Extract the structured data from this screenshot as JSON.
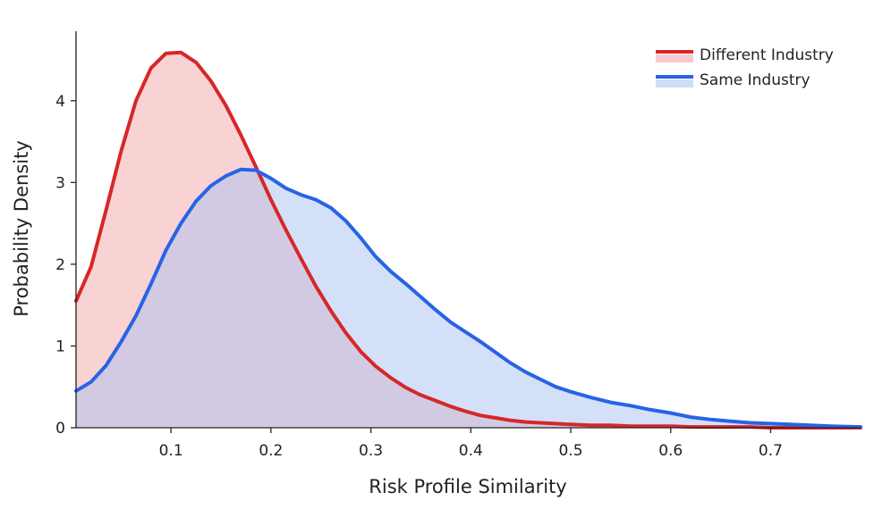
{
  "chart_data": {
    "type": "area",
    "title": "",
    "xlabel": "Risk Profile Similarity",
    "ylabel": "Probability Density",
    "xlim": [
      0.005,
      0.79
    ],
    "ylim": [
      0,
      4.85
    ],
    "xticks": [
      0.1,
      0.2,
      0.3,
      0.4,
      0.5,
      0.6,
      0.7
    ],
    "xtick_labels": [
      "0.1",
      "0.2",
      "0.3",
      "0.4",
      "0.5",
      "0.6",
      "0.7"
    ],
    "yticks": [
      0,
      1,
      2,
      3,
      4
    ],
    "ytick_labels": [
      "0",
      "1",
      "2",
      "3",
      "4"
    ],
    "grid": false,
    "legend_position": "top-right",
    "series": [
      {
        "name": "Different Industry",
        "color": "#d62728",
        "fill_color": "#f2a0a4",
        "x": [
          0.005,
          0.02,
          0.035,
          0.05,
          0.065,
          0.08,
          0.095,
          0.11,
          0.125,
          0.14,
          0.155,
          0.17,
          0.185,
          0.2,
          0.215,
          0.23,
          0.245,
          0.26,
          0.275,
          0.29,
          0.305,
          0.32,
          0.335,
          0.35,
          0.365,
          0.38,
          0.395,
          0.41,
          0.425,
          0.44,
          0.455,
          0.47,
          0.485,
          0.5,
          0.52,
          0.54,
          0.56,
          0.58,
          0.6,
          0.62,
          0.64,
          0.66,
          0.68,
          0.7,
          0.72,
          0.74,
          0.76,
          0.79
        ],
        "values": [
          1.55,
          1.97,
          2.66,
          3.38,
          4.0,
          4.4,
          4.58,
          4.59,
          4.47,
          4.24,
          3.94,
          3.58,
          3.19,
          2.79,
          2.42,
          2.07,
          1.73,
          1.43,
          1.16,
          0.93,
          0.75,
          0.61,
          0.49,
          0.4,
          0.33,
          0.26,
          0.2,
          0.15,
          0.12,
          0.09,
          0.07,
          0.06,
          0.05,
          0.04,
          0.03,
          0.03,
          0.02,
          0.02,
          0.02,
          0.01,
          0.01,
          0.01,
          0.01,
          0.0,
          0.0,
          0.0,
          0.0,
          0.0
        ]
      },
      {
        "name": "Same Industry",
        "color": "#2763e6",
        "fill_color": "#a9c1f2",
        "x": [
          0.005,
          0.02,
          0.035,
          0.05,
          0.065,
          0.08,
          0.095,
          0.11,
          0.125,
          0.14,
          0.155,
          0.17,
          0.185,
          0.2,
          0.215,
          0.23,
          0.245,
          0.26,
          0.275,
          0.29,
          0.305,
          0.32,
          0.335,
          0.35,
          0.365,
          0.38,
          0.395,
          0.41,
          0.425,
          0.44,
          0.455,
          0.47,
          0.485,
          0.5,
          0.52,
          0.54,
          0.56,
          0.58,
          0.6,
          0.62,
          0.64,
          0.66,
          0.68,
          0.7,
          0.72,
          0.74,
          0.76,
          0.79
        ],
        "values": [
          0.45,
          0.56,
          0.76,
          1.05,
          1.37,
          1.76,
          2.17,
          2.5,
          2.77,
          2.96,
          3.08,
          3.16,
          3.15,
          3.05,
          2.93,
          2.85,
          2.79,
          2.69,
          2.53,
          2.32,
          2.09,
          1.91,
          1.76,
          1.6,
          1.44,
          1.29,
          1.17,
          1.05,
          0.92,
          0.79,
          0.68,
          0.59,
          0.5,
          0.44,
          0.37,
          0.31,
          0.27,
          0.22,
          0.18,
          0.13,
          0.1,
          0.08,
          0.06,
          0.05,
          0.04,
          0.03,
          0.02,
          0.01
        ]
      }
    ]
  }
}
